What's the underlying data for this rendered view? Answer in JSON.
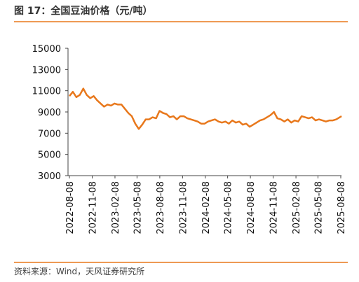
{
  "chart_data": {
    "type": "line",
    "title": "图 17：全国豆油价格（元/吨）",
    "source": "资料来源：Wind，天风证券研究所",
    "x": [
      "2022-08-08",
      "2022-08-22",
      "2022-09-05",
      "2022-09-19",
      "2022-10-03",
      "2022-10-17",
      "2022-10-31",
      "2022-11-14",
      "2022-11-28",
      "2022-12-12",
      "2022-12-26",
      "2023-01-09",
      "2023-01-23",
      "2023-02-06",
      "2023-02-20",
      "2023-03-06",
      "2023-03-20",
      "2023-04-03",
      "2023-04-17",
      "2023-05-01",
      "2023-05-15",
      "2023-05-29",
      "2023-06-12",
      "2023-06-26",
      "2023-07-10",
      "2023-07-24",
      "2023-08-07",
      "2023-08-21",
      "2023-09-04",
      "2023-09-18",
      "2023-10-02",
      "2023-10-16",
      "2023-10-30",
      "2023-11-13",
      "2023-11-27",
      "2023-12-11",
      "2023-12-25",
      "2024-01-08",
      "2024-01-22",
      "2024-02-05",
      "2024-02-19",
      "2024-03-04",
      "2024-03-18",
      "2024-04-01",
      "2024-04-15",
      "2024-04-29",
      "2024-05-13",
      "2024-05-27",
      "2024-06-10",
      "2024-06-24",
      "2024-07-08",
      "2024-07-22",
      "2024-08-05",
      "2024-08-19",
      "2024-09-02",
      "2024-09-16",
      "2024-09-30",
      "2024-10-14",
      "2024-10-28",
      "2024-11-11",
      "2024-11-25",
      "2024-12-09",
      "2024-12-23",
      "2025-01-06",
      "2025-01-20",
      "2025-02-03",
      "2025-02-17",
      "2025-03-03",
      "2025-03-17",
      "2025-03-31",
      "2025-04-14",
      "2025-04-28",
      "2025-05-12",
      "2025-05-26",
      "2025-06-09",
      "2025-06-23",
      "2025-07-07",
      "2025-07-21",
      "2025-08-04",
      "2025-08-11"
    ],
    "series": [
      {
        "color": "#e8781c",
        "values": [
          10500,
          10900,
          10400,
          10600,
          11200,
          10600,
          10300,
          10500,
          10100,
          9800,
          9500,
          9700,
          9600,
          9800,
          9700,
          9700,
          9300,
          8900,
          8600,
          7900,
          7400,
          7800,
          8300,
          8300,
          8500,
          8400,
          9100,
          8900,
          8800,
          8500,
          8600,
          8300,
          8600,
          8600,
          8400,
          8300,
          8200,
          8100,
          7900,
          7900,
          8100,
          8200,
          8300,
          8100,
          8000,
          8100,
          7900,
          8200,
          8000,
          8100,
          7800,
          7900,
          7600,
          7800,
          8000,
          8200,
          8300,
          8500,
          8700,
          9000,
          8400,
          8300,
          8100,
          8300,
          8000,
          8200,
          8100,
          8600,
          8500,
          8400,
          8500,
          8200,
          8300,
          8200,
          8100,
          8200,
          8200,
          8300,
          8500,
          8600
        ]
      }
    ],
    "xlim": [
      "2022-08-08",
      "2025-08-11"
    ],
    "xticks": [
      "2022-08-08",
      "2022-11-08",
      "2023-02-08",
      "2023-05-08",
      "2023-08-08",
      "2023-11-08",
      "2024-02-08",
      "2024-05-08",
      "2024-08-08",
      "2024-11-08",
      "2025-02-08",
      "2025-05-08",
      "2025-08-08"
    ],
    "ylim": [
      3000,
      15000
    ],
    "yticks": [
      3000,
      5000,
      7000,
      9000,
      11000,
      13000,
      15000
    ],
    "grid": false
  }
}
